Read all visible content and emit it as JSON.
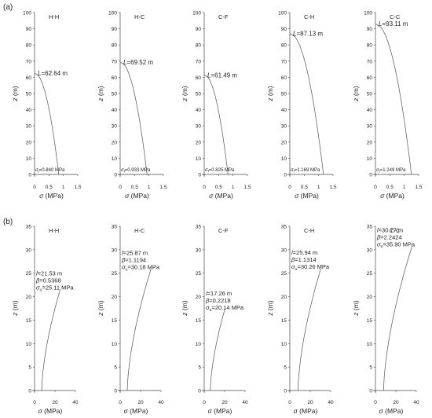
{
  "panels": [
    {
      "label": "(a)"
    },
    {
      "label": "(b)"
    }
  ],
  "chart_data": [
    {
      "panel": "(a)",
      "title": "H-H",
      "type": "line",
      "xlabel": "σ (MPa)",
      "ylabel": "z (m)",
      "xlim": [
        0,
        1.5
      ],
      "ylim": [
        0,
        100
      ],
      "xticks": [
        0,
        0.5,
        1,
        1.5
      ],
      "yticks": [
        0,
        10,
        20,
        30,
        40,
        50,
        60,
        70,
        80,
        90,
        100
      ],
      "xtick_labels": [
        "0",
        "0.5",
        "1",
        "1.5"
      ],
      "ytick_labels": [
        "0",
        "10",
        "20",
        "30",
        "40",
        "50",
        "60",
        "70",
        "80",
        "90",
        "100"
      ],
      "curve": {
        "kind": "half_parabola",
        "z_top": 62.64,
        "sigma_bottom": 0.84
      },
      "annotations": [
        "L=62.64 m",
        "σf=0.840 MPa"
      ]
    },
    {
      "panel": "(a)",
      "title": "H-C",
      "type": "line",
      "xlabel": "σ (MPa)",
      "ylabel": "z (m)",
      "xlim": [
        0,
        1.5
      ],
      "ylim": [
        0,
        100
      ],
      "xticks": [
        0,
        0.5,
        1,
        1.5
      ],
      "yticks": [
        0,
        10,
        20,
        30,
        40,
        50,
        60,
        70,
        80,
        90,
        100
      ],
      "xtick_labels": [
        "0",
        "0.5",
        "1",
        "1.5"
      ],
      "ytick_labels": [
        "0",
        "10",
        "20",
        "30",
        "40",
        "50",
        "60",
        "70",
        "80",
        "90",
        "100"
      ],
      "curve": {
        "kind": "half_parabola",
        "z_top": 69.52,
        "sigma_bottom": 0.933
      },
      "annotations": [
        "L=69.52 m",
        "σf=0.933 MPa"
      ]
    },
    {
      "panel": "(a)",
      "title": "C-F",
      "type": "line",
      "xlabel": "σ (MPa)",
      "ylabel": "z (m)",
      "xlim": [
        0,
        1.5
      ],
      "ylim": [
        0,
        100
      ],
      "xticks": [
        0,
        0.5,
        1,
        1.5
      ],
      "yticks": [
        0,
        10,
        20,
        30,
        40,
        50,
        60,
        70,
        80,
        90,
        100
      ],
      "xtick_labels": [
        "0",
        "0.5",
        "1",
        "1.5"
      ],
      "ytick_labels": [
        "0",
        "10",
        "20",
        "30",
        "40",
        "50",
        "60",
        "70",
        "80",
        "90",
        "100"
      ],
      "curve": {
        "kind": "half_parabola",
        "z_top": 61.49,
        "sigma_bottom": 0.825
      },
      "annotations": [
        "L=61.49 m",
        "σf=0.825 MPa"
      ]
    },
    {
      "panel": "(a)",
      "title": "C-H",
      "type": "line",
      "xlabel": "σ (MPa)",
      "ylabel": "z (m)",
      "xlim": [
        0,
        1.5
      ],
      "ylim": [
        0,
        100
      ],
      "xticks": [
        0,
        0.5,
        1,
        1.5
      ],
      "yticks": [
        0,
        10,
        20,
        30,
        40,
        50,
        60,
        70,
        80,
        90,
        100
      ],
      "xtick_labels": [
        "0",
        "0.5",
        "1",
        "1.5"
      ],
      "ytick_labels": [
        "0",
        "10",
        "20",
        "30",
        "40",
        "50",
        "60",
        "70",
        "80",
        "90",
        "100"
      ],
      "curve": {
        "kind": "half_parabola",
        "z_top": 87.13,
        "sigma_bottom": 1.169
      },
      "annotations": [
        "L=87.13 m",
        "σf=1.169 MPa"
      ]
    },
    {
      "panel": "(a)",
      "title": "C-C",
      "type": "line",
      "xlabel": "σ (MPa)",
      "ylabel": "z (m)",
      "xlim": [
        0,
        1.5
      ],
      "ylim": [
        0,
        100
      ],
      "xticks": [
        0,
        0.5,
        1,
        1.5
      ],
      "yticks": [
        0,
        10,
        20,
        30,
        40,
        50,
        60,
        70,
        80,
        90,
        100
      ],
      "xtick_labels": [
        "0",
        "0.5",
        "1",
        "1.5"
      ],
      "ytick_labels": [
        "0",
        "10",
        "20",
        "30",
        "40",
        "50",
        "60",
        "70",
        "80",
        "90",
        "100"
      ],
      "curve": {
        "kind": "half_parabola",
        "z_top": 93.11,
        "sigma_bottom": 1.249
      },
      "annotations": [
        "L=93.11 m",
        "σf=1.249 MPa"
      ]
    },
    {
      "panel": "(b)",
      "title": "H-H",
      "type": "line",
      "xlabel": "σ (MPa)",
      "ylabel": "z (m)",
      "xlim": [
        0,
        40
      ],
      "ylim": [
        0,
        35
      ],
      "xticks": [
        0,
        20,
        40
      ],
      "yticks": [
        0,
        5,
        10,
        15,
        20,
        25,
        30,
        35
      ],
      "xtick_labels": [
        "0",
        "20",
        "40"
      ],
      "ytick_labels": [
        "0",
        "5",
        "10",
        "15",
        "20",
        "25",
        "30",
        "35"
      ],
      "curve": {
        "kind": "power",
        "z_top": 21.53,
        "sigma_bottom": 7,
        "sigma_top": 25.11,
        "beta": 0.5368
      },
      "annotations": [
        "l=21.53 m",
        "β=0.5368",
        "σu=25.11 MPa"
      ]
    },
    {
      "panel": "(b)",
      "title": "H-C",
      "type": "line",
      "xlabel": "σ (MPa)",
      "ylabel": "z (m)",
      "xlim": [
        0,
        40
      ],
      "ylim": [
        0,
        35
      ],
      "xticks": [
        0,
        20,
        40
      ],
      "yticks": [
        0,
        5,
        10,
        15,
        20,
        25,
        30,
        35
      ],
      "xtick_labels": [
        "0",
        "20",
        "40"
      ],
      "ytick_labels": [
        "0",
        "5",
        "10",
        "15",
        "20",
        "25",
        "30",
        "35"
      ],
      "curve": {
        "kind": "power",
        "z_top": 25.87,
        "sigma_bottom": 7,
        "sigma_top": 30.18,
        "beta": 1.1194
      },
      "annotations": [
        "l=25.87 m",
        "β=1.1194",
        "σu=30.18 MPa"
      ]
    },
    {
      "panel": "(b)",
      "title": "C-F",
      "type": "line",
      "xlabel": "σ (MPa)",
      "ylabel": "z (m)",
      "xlim": [
        0,
        40
      ],
      "ylim": [
        0,
        35
      ],
      "xticks": [
        0,
        20,
        40
      ],
      "yticks": [
        0,
        5,
        10,
        15,
        20,
        25,
        30,
        35
      ],
      "xtick_labels": [
        "0",
        "20",
        "40"
      ],
      "ytick_labels": [
        "0",
        "5",
        "10",
        "15",
        "20",
        "25",
        "30",
        "35"
      ],
      "curve": {
        "kind": "power",
        "z_top": 17.26,
        "sigma_bottom": 6,
        "sigma_top": 20.14,
        "beta": 0.2218
      },
      "annotations": [
        "l=17.26 m",
        "β=0.2218",
        "σu=20.14 MPa"
      ]
    },
    {
      "panel": "(b)",
      "title": "C-H",
      "type": "line",
      "xlabel": "σ (MPa)",
      "ylabel": "z (m)",
      "xlim": [
        0,
        40
      ],
      "ylim": [
        0,
        35
      ],
      "xticks": [
        0,
        20,
        40
      ],
      "yticks": [
        0,
        5,
        10,
        15,
        20,
        25,
        30,
        35
      ],
      "xtick_labels": [
        "0",
        "20",
        "40"
      ],
      "ytick_labels": [
        "0",
        "5",
        "10",
        "15",
        "20",
        "25",
        "30",
        "35"
      ],
      "curve": {
        "kind": "power",
        "z_top": 25.94,
        "sigma_bottom": 8,
        "sigma_top": 30.26,
        "beta": 1.1314
      },
      "annotations": [
        "l=25.94 m",
        "β=1.1314",
        "σu=30.26 MPa"
      ]
    },
    {
      "panel": "(b)",
      "title": "C-C",
      "type": "line",
      "xlabel": "σ (MPa)",
      "ylabel": "z (m)",
      "xlim": [
        0,
        40
      ],
      "ylim": [
        0,
        35
      ],
      "xticks": [
        0,
        20,
        40
      ],
      "yticks": [
        0,
        5,
        10,
        15,
        20,
        25,
        30,
        35
      ],
      "xtick_labels": [
        "0",
        "20",
        "40"
      ],
      "ytick_labels": [
        "0",
        "5",
        "10",
        "15",
        "20",
        "25",
        "30",
        "35"
      ],
      "curve": {
        "kind": "power",
        "z_top": 30.77,
        "sigma_bottom": 8,
        "sigma_top": 35.9,
        "beta": 2.2424
      },
      "annotations": [
        "l=30.77 m",
        "β=2.2424",
        "σu=35.90 MPa"
      ]
    }
  ]
}
